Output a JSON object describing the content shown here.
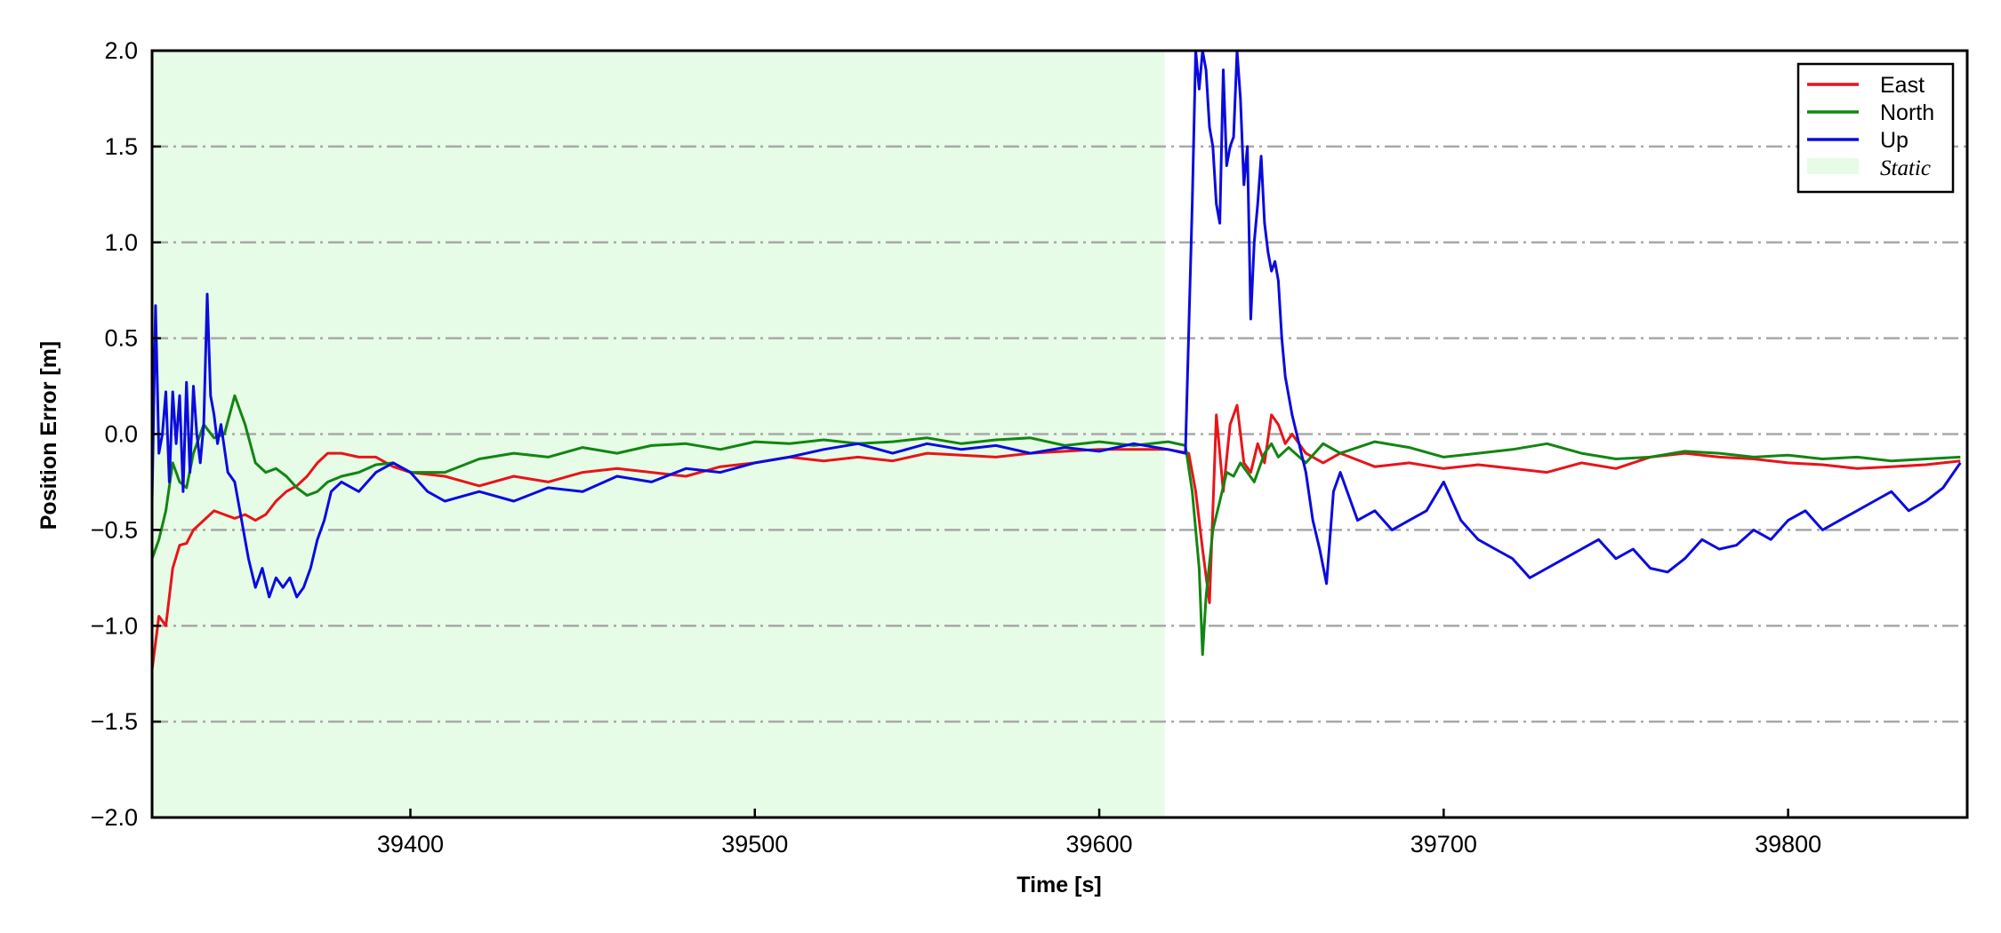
{
  "chart_data": {
    "type": "line",
    "title": "",
    "xlabel": "Time [s]",
    "ylabel": "Position Error [m]",
    "xlim": [
      39325,
      39852
    ],
    "ylim": [
      -2.0,
      2.0
    ],
    "x_ticks": [
      39400,
      39500,
      39600,
      39700,
      39800
    ],
    "x_tick_labels": [
      "39400",
      "39500",
      "39600",
      "39700",
      "39800"
    ],
    "y_ticks": [
      2.0,
      1.5,
      1.0,
      0.5,
      0.0,
      -0.5,
      -1.0,
      -1.5,
      -2.0
    ],
    "y_tick_labels": [
      "2.0",
      "1.5",
      "1.0",
      "0.5",
      "0.0",
      "−0.5",
      "−1.0",
      "−1.5",
      "−2.0"
    ],
    "grid": "horizontal dash-dot",
    "legend_position": "top-right",
    "static_region": {
      "label": "Static",
      "x_start": 39325,
      "x_end": 39619,
      "color": "#e6fce6"
    },
    "series": [
      {
        "name": "East",
        "color": "#e8141a",
        "x": [
          39325,
          39327,
          39329,
          39331,
          39333,
          39335,
          39337,
          39340,
          39343,
          39346,
          39349,
          39352,
          39355,
          39358,
          39361,
          39364,
          39367,
          39370,
          39373,
          39376,
          39380,
          39385,
          39390,
          39395,
          39400,
          39410,
          39420,
          39430,
          39440,
          39450,
          39460,
          39470,
          39480,
          39490,
          39500,
          39510,
          39520,
          39530,
          39540,
          39550,
          39560,
          39570,
          39580,
          39590,
          39600,
          39610,
          39620,
          39626,
          39628,
          39630,
          39632,
          39634,
          39636,
          39638,
          39640,
          39642,
          39644,
          39646,
          39648,
          39650,
          39652,
          39654,
          39656,
          39660,
          39665,
          39670,
          39680,
          39690,
          39700,
          39710,
          39720,
          39730,
          39740,
          39750,
          39760,
          39770,
          39780,
          39790,
          39800,
          39810,
          39820,
          39830,
          39840,
          39850
        ],
        "y": [
          -1.23,
          -0.95,
          -1.0,
          -0.7,
          -0.58,
          -0.57,
          -0.5,
          -0.45,
          -0.4,
          -0.42,
          -0.44,
          -0.42,
          -0.45,
          -0.42,
          -0.35,
          -0.3,
          -0.27,
          -0.22,
          -0.15,
          -0.1,
          -0.1,
          -0.12,
          -0.12,
          -0.17,
          -0.2,
          -0.22,
          -0.27,
          -0.22,
          -0.25,
          -0.2,
          -0.18,
          -0.2,
          -0.22,
          -0.17,
          -0.15,
          -0.12,
          -0.14,
          -0.12,
          -0.14,
          -0.1,
          -0.11,
          -0.12,
          -0.1,
          -0.09,
          -0.08,
          -0.08,
          -0.08,
          -0.1,
          -0.3,
          -0.6,
          -0.88,
          0.1,
          -0.3,
          0.05,
          0.15,
          -0.15,
          -0.2,
          -0.05,
          -0.15,
          0.1,
          0.05,
          -0.05,
          0.0,
          -0.1,
          -0.15,
          -0.1,
          -0.17,
          -0.15,
          -0.18,
          -0.16,
          -0.18,
          -0.2,
          -0.15,
          -0.18,
          -0.12,
          -0.1,
          -0.12,
          -0.13,
          -0.15,
          -0.16,
          -0.18,
          -0.17,
          -0.16,
          -0.14
        ]
      },
      {
        "name": "North",
        "color": "#128512",
        "x": [
          39325,
          39327,
          39329,
          39331,
          39333,
          39335,
          39337,
          39340,
          39343,
          39346,
          39349,
          39352,
          39355,
          39358,
          39361,
          39364,
          39367,
          39370,
          39373,
          39376,
          39380,
          39385,
          39390,
          39395,
          39400,
          39410,
          39420,
          39430,
          39440,
          39450,
          39460,
          39470,
          39480,
          39490,
          39500,
          39510,
          39520,
          39530,
          39540,
          39550,
          39560,
          39570,
          39580,
          39590,
          39600,
          39610,
          39620,
          39625,
          39627,
          39629,
          39630,
          39631,
          39633,
          39635,
          39637,
          39639,
          39641,
          39643,
          39645,
          39648,
          39650,
          39652,
          39655,
          39660,
          39665,
          39670,
          39680,
          39690,
          39700,
          39710,
          39720,
          39730,
          39740,
          39750,
          39760,
          39770,
          39780,
          39790,
          39800,
          39810,
          39820,
          39830,
          39840,
          39850
        ],
        "y": [
          -0.65,
          -0.55,
          -0.4,
          -0.15,
          -0.25,
          -0.28,
          -0.1,
          0.05,
          -0.02,
          0.0,
          0.2,
          0.05,
          -0.15,
          -0.2,
          -0.18,
          -0.22,
          -0.28,
          -0.32,
          -0.3,
          -0.25,
          -0.22,
          -0.2,
          -0.16,
          -0.15,
          -0.2,
          -0.2,
          -0.13,
          -0.1,
          -0.12,
          -0.07,
          -0.1,
          -0.06,
          -0.05,
          -0.08,
          -0.04,
          -0.05,
          -0.03,
          -0.05,
          -0.04,
          -0.02,
          -0.05,
          -0.03,
          -0.02,
          -0.06,
          -0.04,
          -0.06,
          -0.04,
          -0.06,
          -0.3,
          -0.7,
          -1.15,
          -0.85,
          -0.5,
          -0.35,
          -0.2,
          -0.22,
          -0.15,
          -0.2,
          -0.25,
          -0.1,
          -0.05,
          -0.12,
          -0.07,
          -0.15,
          -0.05,
          -0.1,
          -0.04,
          -0.07,
          -0.12,
          -0.1,
          -0.08,
          -0.05,
          -0.1,
          -0.13,
          -0.12,
          -0.09,
          -0.1,
          -0.12,
          -0.11,
          -0.13,
          -0.12,
          -0.14,
          -0.13,
          -0.12
        ]
      },
      {
        "name": "Up",
        "color": "#0b0bdf",
        "x": [
          39325,
          39326,
          39327,
          39328,
          39329,
          39330,
          39331,
          39332,
          39333,
          39334,
          39335,
          39336,
          39337,
          39338,
          39339,
          39340,
          39341,
          39342,
          39343,
          39344,
          39345,
          39347,
          39349,
          39351,
          39353,
          39355,
          39357,
          39359,
          39361,
          39363,
          39365,
          39367,
          39369,
          39371,
          39373,
          39375,
          39377,
          39380,
          39385,
          39390,
          39395,
          39400,
          39405,
          39410,
          39420,
          39430,
          39440,
          39450,
          39460,
          39470,
          39480,
          39490,
          39500,
          39510,
          39520,
          39530,
          39540,
          39550,
          39560,
          39570,
          39580,
          39590,
          39600,
          39610,
          39620,
          39625,
          39627,
          39628,
          39629,
          39630,
          39631,
          39632,
          39633,
          39634,
          39635,
          39636,
          39637,
          39638,
          39639,
          39640,
          39641,
          39642,
          39643,
          39644,
          39645,
          39646,
          39647,
          39648,
          39649,
          39650,
          39651,
          39652,
          39653,
          39654,
          39656,
          39658,
          39660,
          39662,
          39664,
          39666,
          39668,
          39670,
          39675,
          39680,
          39685,
          39690,
          39695,
          39700,
          39705,
          39710,
          39715,
          39720,
          39725,
          39730,
          39735,
          39740,
          39745,
          39750,
          39755,
          39760,
          39765,
          39770,
          39775,
          39780,
          39785,
          39790,
          39795,
          39800,
          39805,
          39810,
          39815,
          39820,
          39825,
          39830,
          39835,
          39840,
          39845,
          39850
        ],
        "y": [
          -0.35,
          0.67,
          -0.1,
          0.0,
          0.22,
          -0.25,
          0.22,
          -0.05,
          0.2,
          -0.3,
          0.27,
          -0.2,
          0.25,
          0.0,
          -0.15,
          0.05,
          0.73,
          0.2,
          0.1,
          -0.05,
          0.05,
          -0.2,
          -0.25,
          -0.45,
          -0.65,
          -0.8,
          -0.7,
          -0.85,
          -0.75,
          -0.8,
          -0.75,
          -0.85,
          -0.8,
          -0.7,
          -0.55,
          -0.45,
          -0.3,
          -0.25,
          -0.3,
          -0.2,
          -0.15,
          -0.2,
          -0.3,
          -0.35,
          -0.3,
          -0.35,
          -0.28,
          -0.3,
          -0.22,
          -0.25,
          -0.18,
          -0.2,
          -0.15,
          -0.12,
          -0.08,
          -0.05,
          -0.1,
          -0.05,
          -0.08,
          -0.06,
          -0.1,
          -0.07,
          -0.09,
          -0.05,
          -0.08,
          -0.1,
          1.2,
          2.0,
          1.8,
          2.0,
          1.9,
          1.6,
          1.5,
          1.2,
          1.1,
          1.9,
          1.4,
          1.5,
          1.55,
          2.0,
          1.75,
          1.3,
          1.5,
          0.6,
          1.0,
          1.2,
          1.45,
          1.1,
          0.95,
          0.85,
          0.9,
          0.8,
          0.5,
          0.3,
          0.1,
          -0.05,
          -0.2,
          -0.45,
          -0.6,
          -0.78,
          -0.3,
          -0.2,
          -0.45,
          -0.4,
          -0.5,
          -0.45,
          -0.4,
          -0.25,
          -0.45,
          -0.55,
          -0.6,
          -0.65,
          -0.75,
          -0.7,
          -0.65,
          -0.6,
          -0.55,
          -0.65,
          -0.6,
          -0.7,
          -0.72,
          -0.65,
          -0.55,
          -0.6,
          -0.58,
          -0.5,
          -0.55,
          -0.45,
          -0.4,
          -0.5,
          -0.45,
          -0.4,
          -0.35,
          -0.3,
          -0.4,
          -0.35,
          -0.28,
          -0.15
        ]
      }
    ]
  }
}
